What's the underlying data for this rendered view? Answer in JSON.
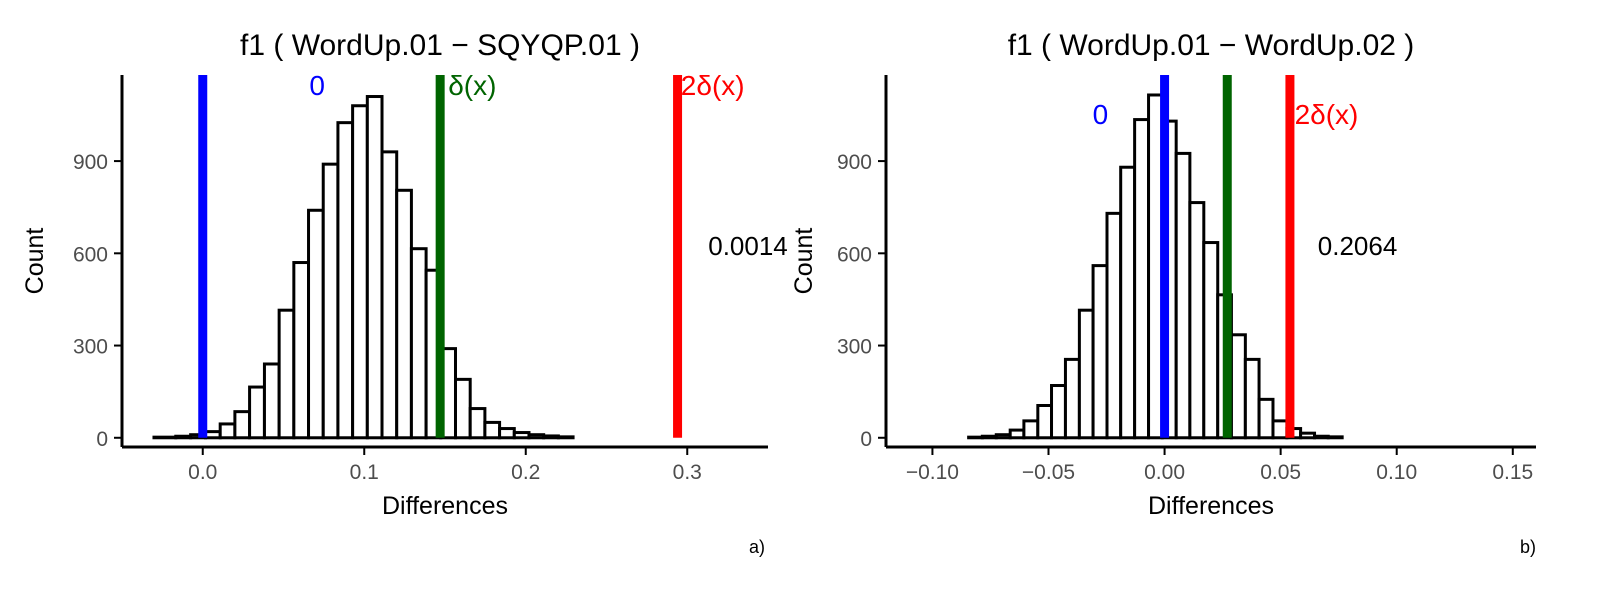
{
  "chart_data": [
    {
      "type": "bar",
      "panel_label": "a)",
      "title": "f1 ( WordUp.01 − SQYQP.01 )",
      "xlabel": "Differences",
      "ylabel": "Count",
      "xlim": [
        -0.05,
        0.35
      ],
      "ylim": [
        -30,
        1180
      ],
      "x_ticks": [
        0.0,
        0.1,
        0.2,
        0.3
      ],
      "x_tick_labels": [
        "0.0",
        "0.1",
        "0.2",
        "0.3"
      ],
      "y_ticks": [
        0,
        300,
        600,
        900
      ],
      "y_tick_labels": [
        "0",
        "300",
        "600",
        "900"
      ],
      "bin_edges": [
        -0.044,
        -0.0302,
        -0.0167,
        -0.0075,
        0.0017,
        0.0108,
        0.0199,
        0.029,
        0.0382,
        0.0473,
        0.0564,
        0.0655,
        0.0746,
        0.0837,
        0.0928,
        0.1019,
        0.111,
        0.1201,
        0.1292,
        0.1383,
        0.1474,
        0.1565,
        0.1656,
        0.1747,
        0.1838,
        0.1929,
        0.202,
        0.2111,
        0.2202,
        0.2293,
        0.2384,
        0.2475,
        0.2566,
        0.2657,
        0.2748,
        0.2839,
        0.293,
        0.3021,
        0.3112,
        0.35
      ],
      "counts": [
        0,
        2,
        5,
        10,
        20,
        45,
        85,
        165,
        240,
        415,
        570,
        740,
        890,
        1025,
        1080,
        1110,
        930,
        805,
        615,
        545,
        290,
        190,
        95,
        50,
        30,
        17,
        10,
        6,
        3,
        0,
        0,
        0,
        0,
        0,
        0,
        0,
        0,
        0,
        0
      ],
      "vlines": [
        {
          "x": 0.0,
          "color": "#0000ff",
          "label": "0",
          "label_x": 0.066,
          "label_y": 1115
        },
        {
          "x": 0.147,
          "color": "#006400",
          "label": "δ(x)",
          "label_x": 0.152,
          "label_y": 1115
        },
        {
          "x": 0.294,
          "color": "#ff0000",
          "label": "2δ(x)",
          "label_x": 0.296,
          "label_y": 1115
        }
      ],
      "annotation": {
        "text": "0.0014",
        "x": 0.313,
        "y": 595
      }
    },
    {
      "type": "bar",
      "panel_label": "b)",
      "title": "f1 ( WordUp.01 − WordUp.02 )",
      "xlabel": "Differences",
      "ylabel": "Count",
      "xlim": [
        -0.12,
        0.16
      ],
      "ylim": [
        -30,
        1180
      ],
      "x_ticks": [
        -0.1,
        -0.05,
        0.0,
        0.05,
        0.1,
        0.15
      ],
      "x_tick_labels": [
        "−0.10",
        "−0.05",
        "0.00",
        "0.05",
        "0.10",
        "0.15"
      ],
      "y_ticks": [
        0,
        300,
        600,
        900
      ],
      "y_tick_labels": [
        "0",
        "300",
        "600",
        "900"
      ],
      "bin_edges": [
        -0.1075,
        -0.0844,
        -0.0785,
        -0.0725,
        -0.0665,
        -0.0606,
        -0.0546,
        -0.0487,
        -0.0427,
        -0.0367,
        -0.0308,
        -0.0248,
        -0.0189,
        -0.0129,
        -0.0069,
        -0.001,
        0.005,
        0.0109,
        0.0169,
        0.0229,
        0.0288,
        0.0348,
        0.0407,
        0.0467,
        0.0527,
        0.0586,
        0.0646,
        0.0705,
        0.0765,
        0.0825,
        0.0884,
        0.0944,
        0.1003,
        0.1063,
        0.1123,
        0.1182,
        0.1242,
        0.1302,
        0.148
      ],
      "counts": [
        0,
        2,
        5,
        10,
        25,
        55,
        105,
        170,
        255,
        415,
        560,
        730,
        880,
        1035,
        1115,
        1030,
        925,
        765,
        635,
        465,
        335,
        255,
        125,
        55,
        30,
        15,
        5,
        3,
        0,
        0,
        0,
        0,
        0,
        0,
        0,
        0,
        0,
        0
      ],
      "vlines": [
        {
          "x": 0.0,
          "color": "#0000ff",
          "label": "0",
          "label_x": -0.031,
          "label_y": 1020
        },
        {
          "x": 0.027,
          "color": "#006400",
          "label": "",
          "label_x": 0.027,
          "label_y": 1020
        },
        {
          "x": 0.054,
          "color": "#ff0000",
          "label": "2δ(x)",
          "label_x": 0.056,
          "label_y": 1020
        }
      ],
      "annotation": {
        "text": "0.2064",
        "x": 0.066,
        "y": 595
      }
    }
  ]
}
